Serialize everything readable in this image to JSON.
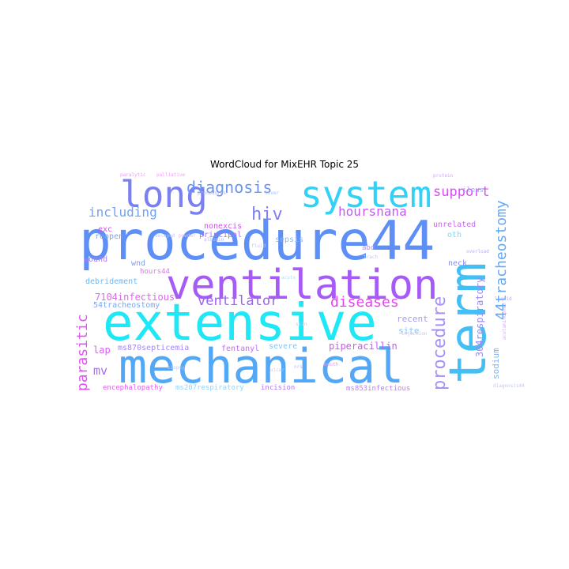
{
  "title": "WordCloud for MixEHR Topic 25",
  "words": [
    {
      "text": "procedure44",
      "color": "#5d8ff6",
      "rot": false
    },
    {
      "text": "extensive",
      "color": "#1ee8f6",
      "rot": false
    },
    {
      "text": "mechanical",
      "color": "#52a8f6",
      "rot": false
    },
    {
      "text": "ventilation",
      "color": "#a65af6",
      "rot": false
    },
    {
      "text": "term",
      "color": "#42c0f6",
      "rot": true
    },
    {
      "text": "system",
      "color": "#32d2f6",
      "rot": false
    },
    {
      "text": "long",
      "color": "#7a80f2",
      "rot": false
    },
    {
      "text": "diagnosis",
      "color": "#6a94f4",
      "rot": false
    },
    {
      "text": "support",
      "color": "#d84ef4",
      "rot": false
    },
    {
      "text": "including",
      "color": "#6ea3f4",
      "rot": false
    },
    {
      "text": "hiv",
      "color": "#7d7ff2",
      "rot": false
    },
    {
      "text": "hoursnana",
      "color": "#c65af4",
      "rot": false
    },
    {
      "text": "ventilator",
      "color": "#9e63f4",
      "rot": false
    },
    {
      "text": "diseases",
      "color": "#e643f2",
      "rot": false
    },
    {
      "text": "procedure",
      "color": "#a890f4",
      "rot": true
    },
    {
      "text": "44tracheostomy",
      "color": "#62a9f6",
      "rot": true
    },
    {
      "text": "parasitic",
      "color": "#e253f2",
      "rot": true
    },
    {
      "text": "304respiratory",
      "color": "#9a8bf2",
      "rot": true
    },
    {
      "text": "7104infectious",
      "color": "#e065ef",
      "rot": false
    },
    {
      "text": "54tracheostomy",
      "color": "#7aa6f4",
      "rot": false
    },
    {
      "text": "debridement",
      "color": "#6cb8f6",
      "rot": false
    },
    {
      "text": "reopen",
      "color": "#7a9ef4",
      "rot": false
    },
    {
      "text": "nonexcis",
      "color": "#d64ff2",
      "rot": false
    },
    {
      "text": "principal",
      "color": "#ac72f4",
      "rot": false
    },
    {
      "text": "sepsis",
      "color": "#88b8f6",
      "rot": false
    },
    {
      "text": "unrelated",
      "color": "#c768f2",
      "rot": false
    },
    {
      "text": "oth",
      "color": "#84d8f6",
      "rot": false
    },
    {
      "text": "exc",
      "color": "#d84ef2",
      "rot": false
    },
    {
      "text": "wnd",
      "color": "#7ca0f4",
      "rot": false
    },
    {
      "text": "hours44",
      "color": "#e072f2",
      "rot": false
    },
    {
      "text": "wound",
      "color": "#b07cf4",
      "rot": false
    },
    {
      "text": "mv",
      "color": "#a66ef4",
      "rot": false
    },
    {
      "text": "lap",
      "color": "#d85ef2",
      "rot": false
    },
    {
      "text": "ms870septicemia",
      "color": "#a488f4",
      "rot": false
    },
    {
      "text": "fentanyl",
      "color": "#c86cf2",
      "rot": false
    },
    {
      "text": "severe",
      "color": "#84c4f6",
      "rot": false
    },
    {
      "text": "piperacillin",
      "color": "#cc58f2",
      "rot": false
    },
    {
      "text": "recent",
      "color": "#a49cf4",
      "rot": false
    },
    {
      "text": "site",
      "color": "#8cc6f6",
      "rot": false
    },
    {
      "text": "neck",
      "color": "#8a8ef4",
      "rot": false
    },
    {
      "text": "sodium",
      "color": "#7cb6f6",
      "rot": true
    },
    {
      "text": "abd",
      "color": "#b88cf4",
      "rot": false
    },
    {
      "text": "encephalopathy",
      "color": "#e460f0",
      "rot": false
    },
    {
      "text": "ms207respiratory",
      "color": "#9ad2f6",
      "rot": false
    },
    {
      "text": "incision",
      "color": "#b478f4",
      "rot": false
    },
    {
      "text": "ms853infectious",
      "color": "#bc80f4",
      "rot": false
    },
    {
      "text": "ileus",
      "color": "#a8a8f6",
      "rot": false
    },
    {
      "text": "protein",
      "color": "#d0a8f6",
      "rot": false
    },
    {
      "text": "paralytic",
      "color": "#e0a0f4",
      "rot": false
    },
    {
      "text": "palliative",
      "color": "#f0a0f4",
      "rot": false
    },
    {
      "text": "procedures",
      "color": "#b0b0f6",
      "rot": false
    },
    {
      "text": "liver",
      "color": "#a0c0f6",
      "rot": false
    },
    {
      "text": "powder",
      "color": "#e8b0f6",
      "rot": false
    },
    {
      "text": "delayed",
      "color": "#b8c8f6",
      "rot": false
    },
    {
      "text": "albumin",
      "color": "#b0b8f6",
      "rot": false
    },
    {
      "text": "fluid",
      "color": "#c0c8f6",
      "rot": false
    },
    {
      "text": "biopsy",
      "color": "#c0c8f6",
      "rot": false
    },
    {
      "text": "overload",
      "color": "#c0b0f6",
      "rot": false
    },
    {
      "text": "liquid",
      "color": "#d0a0f6",
      "rot": false
    },
    {
      "text": "acute",
      "color": "#b0e0f6",
      "rot": false
    },
    {
      "text": "injection",
      "color": "#c0c0f6",
      "rot": false
    },
    {
      "text": "skin",
      "color": "#c0c8f6",
      "rot": false
    },
    {
      "text": "mouth",
      "color": "#e0a0f4",
      "rot": false
    },
    {
      "text": "ulcer",
      "color": "#d0c0f6",
      "rot": false
    },
    {
      "text": "diagnosis44",
      "color": "#c0c8f6",
      "rot": false
    },
    {
      "text": "acetaminophen",
      "color": "#d0b0f6",
      "rot": true
    },
    {
      "text": "nrs",
      "color": "#c0b8f6",
      "rot": false
    },
    {
      "text": "trach",
      "color": "#c0c8f6",
      "rot": false
    }
  ]
}
